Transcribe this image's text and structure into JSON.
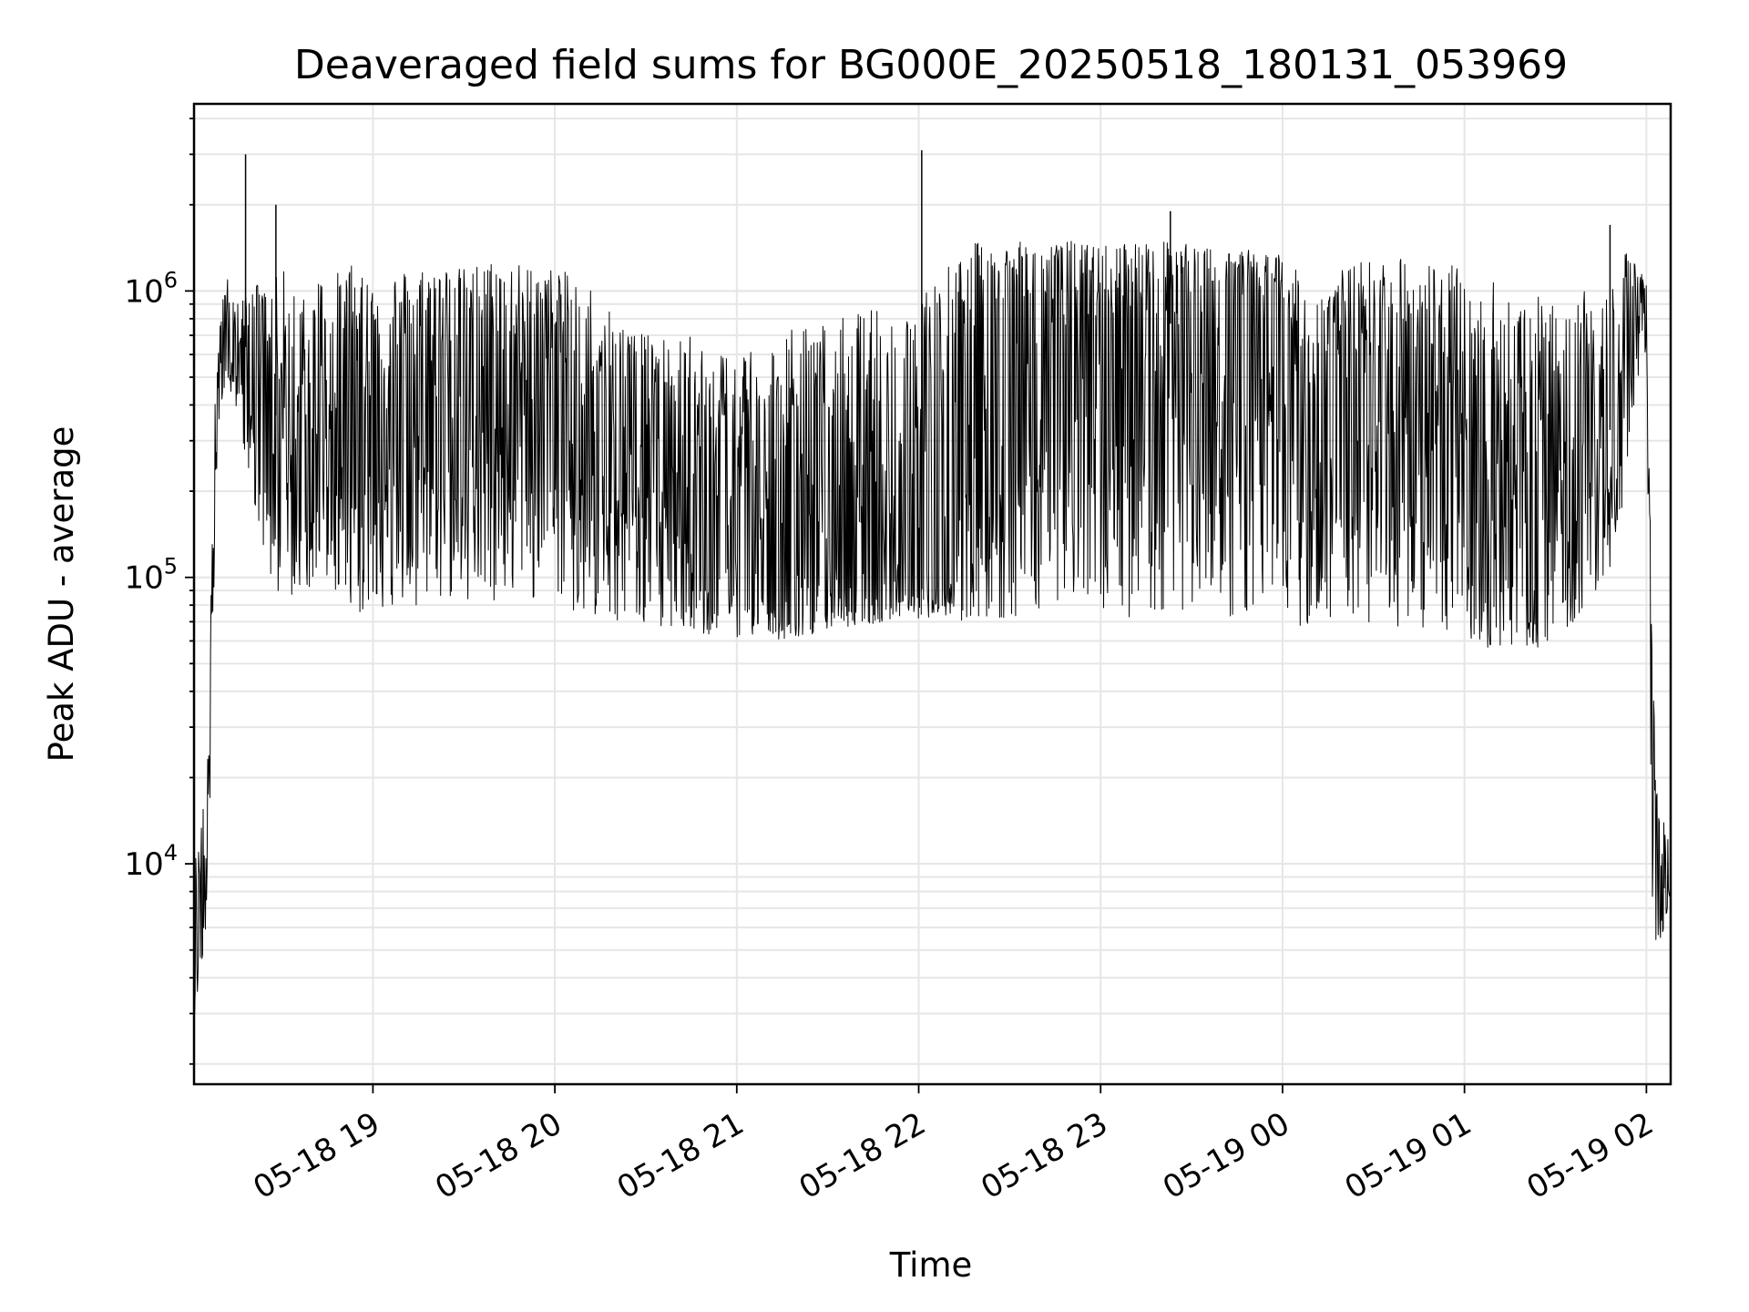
{
  "chart_data": {
    "type": "line",
    "title": "Deaveraged field sums for BG000E_20250518_180131_053969",
    "xlabel": "Time",
    "ylabel": "Peak ADU - average",
    "yscale": "log",
    "ylim": [
      1700,
      4500000
    ],
    "xlim": [
      "2025-05-18 18:01",
      "2025-05-19 02:08"
    ],
    "grid": true,
    "line_color": "#000000",
    "x_ticks": [
      {
        "label": "05-18 19",
        "time": "2025-05-18 19:00"
      },
      {
        "label": "05-18 20",
        "time": "2025-05-18 20:00"
      },
      {
        "label": "05-18 21",
        "time": "2025-05-18 21:00"
      },
      {
        "label": "05-18 22",
        "time": "2025-05-18 22:00"
      },
      {
        "label": "05-18 23",
        "time": "2025-05-18 23:00"
      },
      {
        "label": "05-19 00",
        "time": "2025-05-19 00:00"
      },
      {
        "label": "05-19 01",
        "time": "2025-05-19 01:00"
      },
      {
        "label": "05-19 02",
        "time": "2025-05-19 02:00"
      }
    ],
    "y_ticks": [
      {
        "base": "10",
        "exp": "4",
        "value": 10000
      },
      {
        "base": "10",
        "exp": "5",
        "value": 100000
      },
      {
        "base": "10",
        "exp": "6",
        "value": 1000000
      }
    ],
    "series": [
      {
        "x": [
          "2025-05-18 18:01",
          "2025-05-18 18:03",
          "2025-05-18 18:05",
          "2025-05-18 18:07",
          "2025-05-18 18:08",
          "2025-05-18 18:10",
          "2025-05-18 18:12",
          "2025-05-18 18:14",
          "2025-05-18 18:16",
          "2025-05-18 18:20",
          "2025-05-18 18:25",
          "2025-05-18 18:30",
          "2025-05-18 18:35",
          "2025-05-18 18:40",
          "2025-05-18 18:45",
          "2025-05-18 18:50",
          "2025-05-18 18:55",
          "2025-05-18 19:00",
          "2025-05-18 19:10",
          "2025-05-18 19:20",
          "2025-05-18 19:30",
          "2025-05-18 19:40",
          "2025-05-18 19:50",
          "2025-05-18 20:00",
          "2025-05-18 20:10",
          "2025-05-18 20:20",
          "2025-05-18 20:30",
          "2025-05-18 20:40",
          "2025-05-18 20:50",
          "2025-05-18 21:00",
          "2025-05-18 21:10",
          "2025-05-18 21:20",
          "2025-05-18 21:30",
          "2025-05-18 21:40",
          "2025-05-18 21:50",
          "2025-05-18 22:00",
          "2025-05-18 22:10",
          "2025-05-18 22:20",
          "2025-05-18 22:30",
          "2025-05-18 22:40",
          "2025-05-18 22:50",
          "2025-05-18 23:00",
          "2025-05-18 23:10",
          "2025-05-18 23:20",
          "2025-05-18 23:30",
          "2025-05-18 23:40",
          "2025-05-18 23:50",
          "2025-05-19 00:00",
          "2025-05-19 00:10",
          "2025-05-19 00:20",
          "2025-05-19 00:30",
          "2025-05-19 00:40",
          "2025-05-19 00:50",
          "2025-05-19 01:00",
          "2025-05-19 01:10",
          "2025-05-19 01:20",
          "2025-05-19 01:30",
          "2025-05-19 01:40",
          "2025-05-19 01:50",
          "2025-05-19 01:56",
          "2025-05-19 02:00",
          "2025-05-19 02:02",
          "2025-05-19 02:04",
          "2025-05-19 02:06",
          "2025-05-19 02:08"
        ],
        "y": [
          8000,
          5000,
          22000,
          90000,
          300000,
          550000,
          650000,
          620000,
          580000,
          700000,
          500000,
          300000,
          200000,
          400000,
          500000,
          450000,
          600000,
          350000,
          450000,
          500000,
          600000,
          500000,
          400000,
          600000,
          400000,
          250000,
          180000,
          150000,
          120000,
          110000,
          100000,
          95000,
          90000,
          100000,
          95000,
          90000,
          100000,
          700000,
          900000,
          800000,
          700000,
          600000,
          750000,
          800000,
          700000,
          900000,
          850000,
          800000,
          300000,
          600000,
          500000,
          400000,
          350000,
          250000,
          200000,
          150000,
          180000,
          250000,
          350000,
          900000,
          950000,
          30000,
          8000,
          9000,
          11000
        ],
        "envelope_top": [
          10000,
          13000,
          40000,
          200000,
          500000,
          900000,
          1100000,
          1000000,
          900000,
          1100000,
          1000000,
          1200000,
          1100000,
          1200000,
          1100000,
          1200000,
          1250000,
          1150000,
          1200000,
          1250000,
          1200000,
          1300000,
          1250000,
          1200000,
          1100000,
          900000,
          700000,
          700000,
          700000,
          650000,
          700000,
          750000,
          800000,
          850000,
          900000,
          1000000,
          1300000,
          1500000,
          1500000,
          1450000,
          1500000,
          1450000,
          1500000,
          1500000,
          1450000,
          1400000,
          1400000,
          1350000,
          1000000,
          1200000,
          1300000,
          1350000,
          1300000,
          1200000,
          1100000,
          1000000,
          900000,
          1000000,
          1300000,
          1400000,
          1100000,
          50000,
          15000,
          14000,
          12000
        ],
        "envelope_bottom": [
          3000,
          2500,
          6000,
          30000,
          200000,
          400000,
          500000,
          400000,
          350000,
          200000,
          100000,
          80000,
          90000,
          90000,
          95000,
          80000,
          75000,
          75000,
          80000,
          80000,
          75000,
          80000,
          85000,
          80000,
          70000,
          70000,
          68000,
          65000,
          62000,
          62000,
          60000,
          62000,
          65000,
          68000,
          70000,
          72000,
          70000,
          70000,
          72000,
          75000,
          78000,
          75000,
          72000,
          75000,
          78000,
          72000,
          70000,
          70000,
          65000,
          68000,
          70000,
          65000,
          62000,
          60000,
          55000,
          55000,
          60000,
          75000,
          120000,
          400000,
          600000,
          6000,
          5000,
          6000,
          8000
        ],
        "spikes": [
          {
            "time": "2025-05-18 18:18",
            "value": 3000000
          },
          {
            "time": "2025-05-18 18:28",
            "value": 2000000
          },
          {
            "time": "2025-05-18 22:01",
            "value": 3100000
          },
          {
            "time": "2025-05-18 23:23",
            "value": 1900000
          },
          {
            "time": "2025-05-19 01:48",
            "value": 1700000
          }
        ]
      }
    ]
  }
}
